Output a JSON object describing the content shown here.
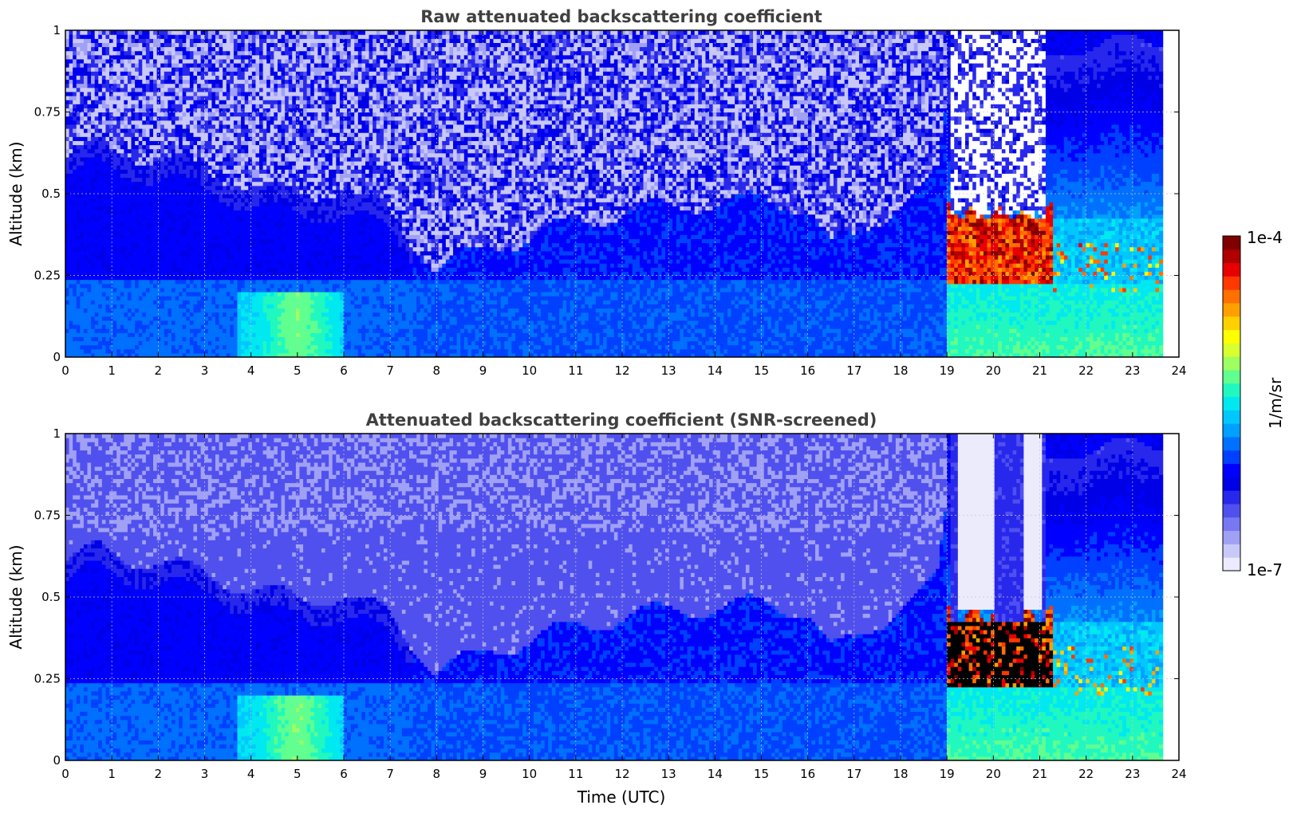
{
  "chart_data": [
    {
      "type": "heatmap",
      "title": "Raw attenuated backscattering coefficient",
      "xlabel": "",
      "ylabel": "Altitude (km)",
      "xlim": [
        0,
        24
      ],
      "ylim": [
        0,
        1
      ],
      "x_ticks": [
        "0",
        "1",
        "2",
        "3",
        "4",
        "5",
        "6",
        "7",
        "8",
        "9",
        "10",
        "11",
        "12",
        "13",
        "14",
        "15",
        "16",
        "17",
        "18",
        "19",
        "20",
        "21",
        "22",
        "23",
        "24"
      ],
      "y_ticks": [
        "0",
        "0.25",
        "0.5",
        "0.75",
        "1"
      ],
      "grid": true,
      "data_end_time": 23.65,
      "features": {
        "boundary_layer_top_km": [
          [
            0,
            0.6
          ],
          [
            0.7,
            0.65
          ],
          [
            2,
            0.6
          ],
          [
            3,
            0.58
          ],
          [
            4,
            0.52
          ],
          [
            5,
            0.5
          ],
          [
            6,
            0.5
          ],
          [
            7,
            0.45
          ],
          [
            8,
            0.27
          ],
          [
            9,
            0.33
          ],
          [
            10,
            0.37
          ],
          [
            11,
            0.41
          ],
          [
            12,
            0.44
          ],
          [
            13,
            0.46
          ],
          [
            14,
            0.47
          ],
          [
            15,
            0.48
          ],
          [
            16,
            0.46
          ],
          [
            16.5,
            0.34
          ],
          [
            17,
            0.36
          ],
          [
            18,
            0.48
          ],
          [
            18.8,
            0.55
          ],
          [
            19.1,
            0.9
          ],
          [
            21.1,
            0.9
          ],
          [
            21.5,
            0.95
          ],
          [
            23.65,
            0.97
          ]
        ],
        "strong_layer": {
          "time": [
            19.0,
            21.3
          ],
          "altitude_km": [
            0.22,
            0.45
          ],
          "value": "1e-4"
        },
        "weak_spikes_layer": {
          "time": [
            21.3,
            23.65
          ],
          "altitude_km": [
            0.2,
            0.35
          ]
        }
      }
    },
    {
      "type": "heatmap",
      "title": "Attenuated backscattering coefficient (SNR-screened)",
      "xlabel": "Time (UTC)",
      "ylabel": "Altitude (km)",
      "xlim": [
        0,
        24
      ],
      "ylim": [
        0,
        1
      ],
      "x_ticks": [
        "0",
        "1",
        "2",
        "3",
        "4",
        "5",
        "6",
        "7",
        "8",
        "9",
        "10",
        "11",
        "12",
        "13",
        "14",
        "15",
        "16",
        "17",
        "18",
        "19",
        "20",
        "21",
        "22",
        "23",
        "24"
      ],
      "y_ticks": [
        "0",
        "0.25",
        "0.5",
        "0.75",
        "1"
      ],
      "grid": true,
      "data_end_time": 23.65,
      "features": {
        "screened_gaps_time": [
          [
            19.3,
            19.9
          ],
          [
            20.7,
            21.0
          ]
        ],
        "screened_gap_floor_km": 0.45,
        "saturated_black_region": {
          "time": [
            19.0,
            21.3
          ],
          "altitude_km": [
            0.22,
            0.42
          ]
        }
      }
    }
  ],
  "colorbar": {
    "label": "1/m/sr",
    "max_label": "1e-4",
    "min_label": "1e-7",
    "colors": [
      "#ebebfc",
      "#c8c8f9",
      "#a0a0f5",
      "#7878f2",
      "#5050ef",
      "#2828ec",
      "#0000e6",
      "#0000ff",
      "#0040ff",
      "#0070ff",
      "#00a0ff",
      "#00c8ff",
      "#00e8f0",
      "#20f8c0",
      "#60ff90",
      "#a0ff60",
      "#d8ff30",
      "#ffff00",
      "#ffd000",
      "#ffa000",
      "#ff7000",
      "#ff3800",
      "#e80000",
      "#b00000",
      "#800000"
    ]
  }
}
